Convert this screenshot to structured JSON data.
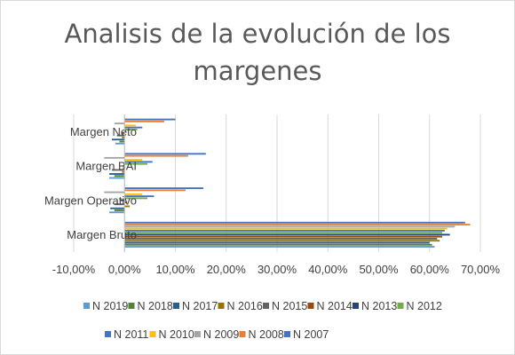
{
  "chart_data": {
    "type": "bar",
    "orientation": "horizontal",
    "title": "Analisis de la evolución de los margenes",
    "title_lines": [
      "Analisis de la evolución de los",
      "margenes"
    ],
    "categories": [
      "Margen Neto",
      "Margen BAI",
      "Margen Operativo",
      "Margen Bruto"
    ],
    "xlim": [
      -0.1,
      0.7
    ],
    "x_ticks": [
      "-10,00%",
      "0,00%",
      "10,00%",
      "20,00%",
      "30,00%",
      "40,00%",
      "50,00%",
      "60,00%",
      "70,00%"
    ],
    "grid": true,
    "legend_position": "bottom",
    "series": [
      {
        "name": "N 2019",
        "color": "#5b9bd5",
        "values": [
          -0.018,
          -0.03,
          -0.03,
          0.61
        ]
      },
      {
        "name": "N 2018",
        "color": "#548235",
        "values": [
          -0.01,
          -0.02,
          -0.02,
          0.605
        ]
      },
      {
        "name": "N 2017",
        "color": "#255e91",
        "values": [
          -0.025,
          -0.03,
          -0.028,
          0.6
        ]
      },
      {
        "name": "N 2016",
        "color": "#997300",
        "values": [
          -0.005,
          -0.005,
          0.01,
          0.62
        ]
      },
      {
        "name": "N 2015",
        "color": "#636363",
        "values": [
          -0.015,
          -0.025,
          -0.02,
          0.615
        ]
      },
      {
        "name": "N 2014",
        "color": "#9e480e",
        "values": [
          -0.005,
          -0.003,
          0.005,
          0.625
        ]
      },
      {
        "name": "N 2013",
        "color": "#264478",
        "values": [
          0.002,
          -0.002,
          -0.008,
          0.64
        ]
      },
      {
        "name": "N 2012",
        "color": "#70ad47",
        "values": [
          0.025,
          0.045,
          0.045,
          0.625
        ]
      },
      {
        "name": "N 2011",
        "color": "#4472c4",
        "values": [
          0.035,
          0.055,
          0.058,
          0.63
        ]
      },
      {
        "name": "N 2010",
        "color": "#ffc000",
        "values": [
          0.022,
          0.035,
          0.035,
          0.635
        ]
      },
      {
        "name": "N 2009",
        "color": "#a5a5a5",
        "values": [
          -0.02,
          -0.04,
          -0.04,
          0.65
        ]
      },
      {
        "name": "N 2008",
        "color": "#ed7d31",
        "values": [
          0.078,
          0.125,
          0.12,
          0.68
        ]
      },
      {
        "name": "N 2007",
        "color": "#4472c4",
        "values": [
          0.1,
          0.16,
          0.155,
          0.67
        ]
      }
    ]
  }
}
